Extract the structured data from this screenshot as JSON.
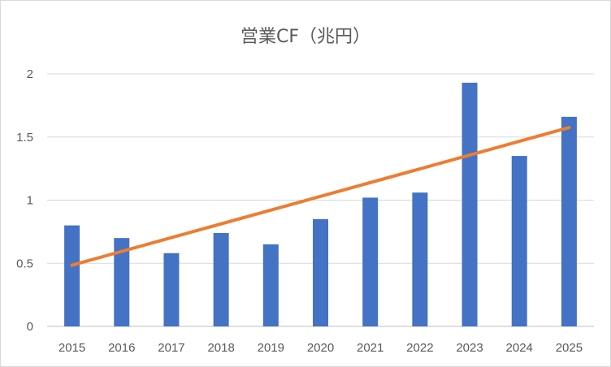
{
  "chart_data": {
    "type": "bar",
    "title": "営業CF（兆円）",
    "categories": [
      "2015",
      "2016",
      "2017",
      "2018",
      "2019",
      "2020",
      "2021",
      "2022",
      "2023",
      "2024",
      "2025"
    ],
    "series": [
      {
        "values": [
          0.8,
          0.7,
          0.58,
          0.74,
          0.65,
          0.85,
          1.02,
          1.06,
          1.93,
          1.35,
          1.66
        ],
        "color": "#4472c4"
      }
    ],
    "trendline": {
      "type": "linear",
      "start": 0.485,
      "end": 1.575,
      "color": "#ed7d31"
    },
    "y_ticks": [
      "0",
      "0.5",
      "1",
      "1.5",
      "2"
    ],
    "ylim": [
      0,
      2
    ],
    "grid": true,
    "legend": "none"
  }
}
